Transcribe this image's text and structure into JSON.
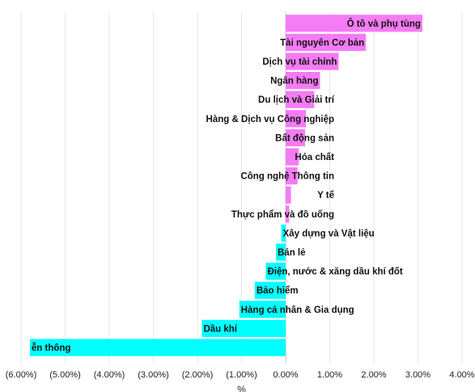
{
  "chart_data": {
    "type": "bar",
    "orientation": "horizontal",
    "xlabel": "%",
    "ylabel": "",
    "xlim": [
      -6,
      4
    ],
    "tick_values": [
      -6,
      -5,
      -4,
      -3,
      -2,
      -1,
      0,
      1,
      2,
      3,
      4
    ],
    "tick_labels": [
      "(6.00%)",
      "(5.00%)",
      "(4.00%)",
      "(3.00%)",
      "(2.00%)",
      "(1.00%)",
      "0.00%",
      "1.00%",
      "2.00%",
      "3.00%",
      "4.00%"
    ],
    "grid": true,
    "colors": {
      "positive": "#f57bf5",
      "negative": "#00ffff"
    },
    "categories": [
      "Ô tô và phụ tùng",
      "Tài nguyên Cơ bản",
      "Dịch vụ tài chính",
      "Ngân hàng",
      "Du lịch và Giải trí",
      "Hàng & Dịch vụ Công nghiệp",
      "Bất động sản",
      "Hóa chất",
      "Công nghệ Thông tin",
      "Y tế",
      "Thực phẩm và đồ uống",
      "Xây dựng và Vật liệu",
      "Bán lẻ",
      "Điện, nước & xăng dầu khí đốt",
      "Bảo hiểm",
      "Hàng cá nhân & Gia dụng",
      "Dầu khí",
      "ễn thông"
    ],
    "values": [
      3.1,
      1.82,
      1.2,
      0.78,
      0.65,
      0.46,
      0.44,
      0.3,
      0.27,
      0.12,
      0.08,
      -0.1,
      -0.22,
      -0.45,
      -0.7,
      -1.05,
      -1.9,
      -5.8
    ]
  }
}
